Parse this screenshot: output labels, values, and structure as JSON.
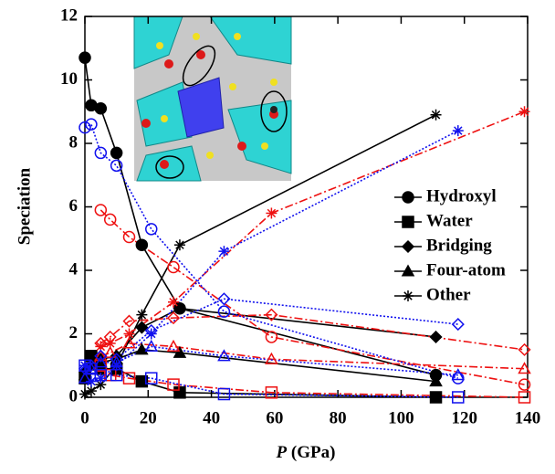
{
  "chart_data": {
    "type": "line",
    "y_label": "Speciation",
    "x_label": {
      "symbol": "P",
      "unit": "(GPa)"
    },
    "xlim": [
      0,
      140
    ],
    "xticks": [
      0,
      20,
      40,
      60,
      80,
      100,
      120,
      140
    ],
    "ylim": [
      0,
      12
    ],
    "yticks": [
      0,
      2,
      4,
      6,
      8,
      10,
      12
    ],
    "legend": "right",
    "series": [
      {
        "name": "Hydroxyl",
        "color": "#000000",
        "marker": "circle",
        "filled": true,
        "dash": "solid",
        "x": [
          0,
          2,
          5,
          10,
          18,
          30,
          111
        ],
        "values": [
          10.7,
          9.2,
          9.1,
          7.7,
          4.8,
          2.8,
          0.7
        ]
      },
      {
        "name": "Water",
        "color": "#000000",
        "marker": "square",
        "filled": true,
        "dash": "solid",
        "x": [
          0,
          2,
          5,
          10,
          18,
          30,
          111
        ],
        "values": [
          0.6,
          1.3,
          0.9,
          0.9,
          0.5,
          0.15,
          0
        ]
      },
      {
        "name": "Bridging",
        "color": "#000000",
        "marker": "diamond",
        "filled": true,
        "dash": "solid",
        "x": [
          0,
          2,
          5,
          10,
          18,
          30,
          111
        ],
        "values": [
          0.8,
          1.2,
          1.2,
          1.3,
          2.2,
          2.8,
          1.9
        ]
      },
      {
        "name": "Four-atom",
        "color": "#000000",
        "marker": "triangle",
        "filled": true,
        "dash": "solid",
        "x": [
          0,
          2,
          5,
          10,
          18,
          30,
          111
        ],
        "values": [
          0.7,
          1.0,
          1.1,
          1.2,
          1.5,
          1.4,
          0.5
        ]
      },
      {
        "name": "Other",
        "color": "#000000",
        "marker": "star",
        "filled": true,
        "dash": "solid",
        "x": [
          0,
          2,
          5,
          10,
          18,
          30,
          111
        ],
        "values": [
          0.1,
          0.2,
          0.4,
          1.0,
          2.6,
          4.8,
          8.9
        ]
      },
      {
        "color": "#ee1111",
        "marker": "circle",
        "filled": false,
        "dash": "dashdot",
        "x": [
          5,
          8,
          14,
          28,
          59,
          139
        ],
        "values": [
          5.9,
          5.6,
          5.05,
          4.1,
          1.9,
          0.4
        ]
      },
      {
        "color": "#ee1111",
        "marker": "square",
        "filled": false,
        "dash": "dashdot",
        "x": [
          5,
          8,
          14,
          28,
          59,
          139
        ],
        "values": [
          1.0,
          0.7,
          0.6,
          0.4,
          0.15,
          0
        ]
      },
      {
        "color": "#ee1111",
        "marker": "diamond",
        "filled": false,
        "dash": "dashdot",
        "x": [
          5,
          8,
          14,
          28,
          59,
          139
        ],
        "values": [
          1.7,
          1.9,
          2.4,
          2.5,
          2.6,
          1.5
        ]
      },
      {
        "color": "#ee1111",
        "marker": "triangle",
        "filled": false,
        "dash": "dashdot",
        "x": [
          5,
          8,
          14,
          28,
          59,
          139
        ],
        "values": [
          1.3,
          1.4,
          1.7,
          1.6,
          1.2,
          0.9
        ]
      },
      {
        "color": "#ee1111",
        "marker": "star",
        "filled": false,
        "dash": "dashdot",
        "x": [
          5,
          8,
          14,
          28,
          59,
          139
        ],
        "values": [
          1.6,
          1.7,
          2.0,
          3.0,
          5.8,
          9.0
        ]
      },
      {
        "color": "#1111ee",
        "marker": "circle",
        "filled": false,
        "dash": "dotted",
        "x": [
          0,
          2,
          5,
          10,
          21,
          44,
          118
        ],
        "values": [
          8.5,
          8.6,
          7.7,
          7.3,
          5.3,
          2.7,
          0.6
        ]
      },
      {
        "color": "#1111ee",
        "marker": "square",
        "filled": false,
        "dash": "dotted",
        "x": [
          0,
          2,
          5,
          10,
          21,
          44,
          118
        ],
        "values": [
          1.0,
          0.9,
          0.7,
          0.7,
          0.6,
          0.1,
          0
        ]
      },
      {
        "color": "#1111ee",
        "marker": "diamond",
        "filled": false,
        "dash": "dotted",
        "x": [
          0,
          2,
          5,
          10,
          21,
          44,
          118
        ],
        "values": [
          0.9,
          1.0,
          1.3,
          1.2,
          2.1,
          3.1,
          2.3
        ]
      },
      {
        "color": "#1111ee",
        "marker": "triangle",
        "filled": false,
        "dash": "dotted",
        "x": [
          0,
          2,
          5,
          10,
          21,
          44,
          118
        ],
        "values": [
          0.6,
          0.9,
          1.1,
          1.1,
          1.6,
          1.3,
          0.7
        ]
      },
      {
        "color": "#1111ee",
        "marker": "star",
        "filled": false,
        "dash": "dotted",
        "x": [
          0,
          2,
          5,
          10,
          21,
          44,
          118
        ],
        "values": [
          1.0,
          0.5,
          0.6,
          1.0,
          2.0,
          4.6,
          8.4
        ]
      }
    ]
  }
}
